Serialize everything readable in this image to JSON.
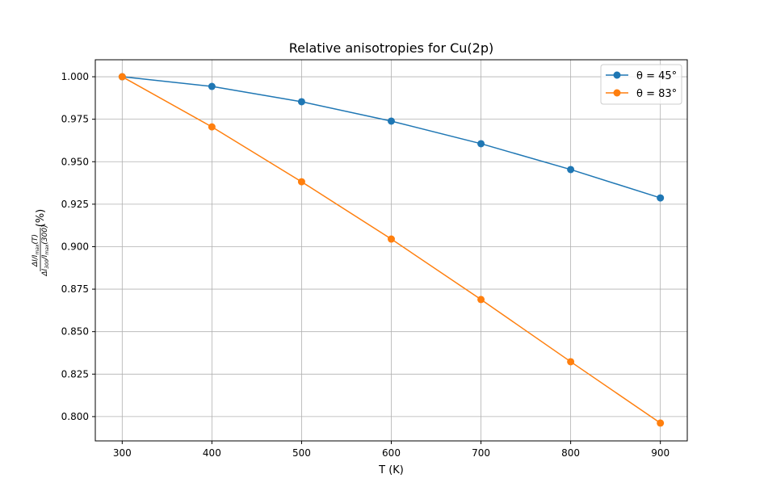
{
  "chart_data": {
    "type": "line",
    "title": "Relative anisotropies for Cu(2p)",
    "xlabel": "T (K)",
    "ylabel": "ΔI/I_max(T) / ΔI_300/I_max(300) (%)",
    "ylabel_num": "ΔI/I",
    "ylabel_num_sub": "max",
    "ylabel_num_tail": "(T)",
    "ylabel_den": "ΔI",
    "ylabel_den_sub1": "300",
    "ylabel_den_mid": "/I",
    "ylabel_den_sub2": "max",
    "ylabel_den_tail": "(300)",
    "ylabel_unit": "(%)",
    "x": [
      300,
      400,
      500,
      600,
      700,
      800,
      900
    ],
    "xlim": [
      270,
      930
    ],
    "ylim": [
      0.7857,
      1.01
    ],
    "xticks": [
      "300",
      "400",
      "500",
      "600",
      "700",
      "800",
      "900"
    ],
    "yticks": [
      "0.800",
      "0.825",
      "0.850",
      "0.875",
      "0.900",
      "0.925",
      "0.950",
      "0.975",
      "1.000"
    ],
    "grid": true,
    "legend_placement": "top-right",
    "series": [
      {
        "name": "θ = 45°",
        "color": "#1f77b4",
        "values": [
          1.0,
          0.9943,
          0.9853,
          0.9739,
          0.9606,
          0.9454,
          0.9287
        ]
      },
      {
        "name": "θ = 83°",
        "color": "#ff7f0e",
        "values": [
          1.0,
          0.9705,
          0.9382,
          0.9045,
          0.8689,
          0.8323,
          0.7962
        ]
      }
    ]
  }
}
